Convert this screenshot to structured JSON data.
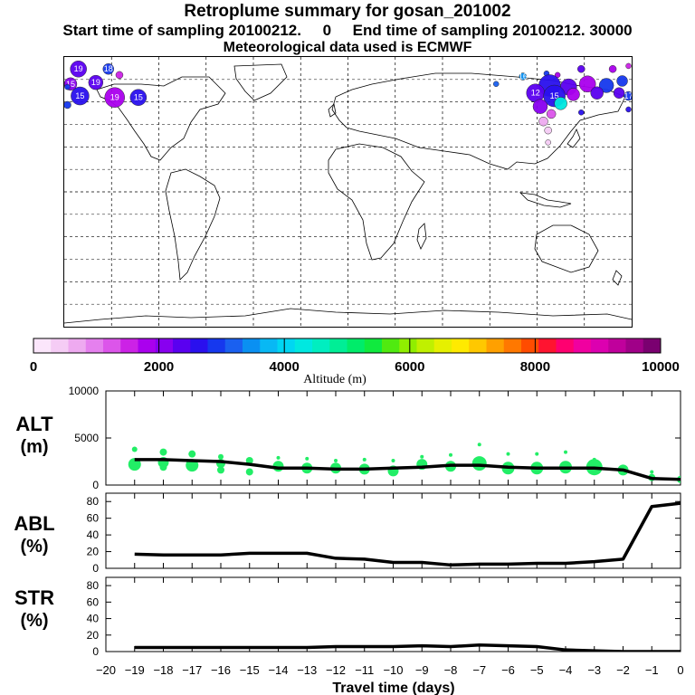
{
  "header": {
    "title": "Retroplume summary for gosan_201002",
    "sampling": "Start time of sampling 20100212.     0     End time of sampling 20100212. 30000",
    "met_data": "Meteorological data used is ECMWF"
  },
  "colorbar": {
    "label": "Altitude (m)",
    "ticks": [
      "0",
      "2000",
      "4000",
      "6000",
      "8000",
      "10000"
    ],
    "range": [
      0,
      10000
    ],
    "colors": [
      "#fbe6fb",
      "#f5ccf5",
      "#eeaaf0",
      "#e580ee",
      "#dc55ea",
      "#cc22e6",
      "#aa00ee",
      "#8800f0",
      "#5a00f0",
      "#2a10ee",
      "#1638ee",
      "#1a60f0",
      "#0a90f2",
      "#08b8f4",
      "#00d6f2",
      "#00e8e0",
      "#00eec0",
      "#00ee96",
      "#00ec6a",
      "#10ea3e",
      "#50ea10",
      "#90ee00",
      "#c0f000",
      "#e6f000",
      "#ffea00",
      "#ffc800",
      "#ffa000",
      "#ff7800",
      "#ff4c00",
      "#ff1430",
      "#ff0070",
      "#f000a0",
      "#dc00b0",
      "#c0009c",
      "#a00088",
      "#7a0070"
    ]
  },
  "map": {
    "markers": [
      {
        "lon": -171,
        "lat": 82,
        "r": 9,
        "color": "#5a00f0",
        "label": "19"
      },
      {
        "lon": -152,
        "lat": 82,
        "r": 6,
        "color": "#1638ee",
        "label": "18"
      },
      {
        "lon": -145,
        "lat": 78,
        "r": 4,
        "color": "#cc22e6",
        "label": ""
      },
      {
        "lon": -176,
        "lat": 72,
        "r": 7,
        "color": "#8800f0",
        "label": "15"
      },
      {
        "lon": -160,
        "lat": 73,
        "r": 8,
        "color": "#5a00f0",
        "label": "19"
      },
      {
        "lon": -170,
        "lat": 64,
        "r": 10,
        "color": "#2a10ee",
        "label": "15"
      },
      {
        "lon": -148,
        "lat": 63,
        "r": 11,
        "color": "#aa00ee",
        "label": "19"
      },
      {
        "lon": -133,
        "lat": 63,
        "r": 9,
        "color": "#2a10ee",
        "label": "15"
      },
      {
        "lon": -178,
        "lat": 58,
        "r": 4,
        "color": "#1638ee",
        "label": ""
      },
      {
        "lon": 148,
        "lat": 82,
        "r": 4,
        "color": "#5a00f0",
        "label": ""
      },
      {
        "lon": 168,
        "lat": 82,
        "r": 4,
        "color": "#aa00ee",
        "label": ""
      },
      {
        "lon": 178,
        "lat": 84,
        "r": 3,
        "color": "#cc22e6",
        "label": ""
      },
      {
        "lon": 111,
        "lat": 77,
        "r": 4,
        "color": "#0a90f2",
        "label": "16"
      },
      {
        "lon": 126,
        "lat": 79,
        "r": 3,
        "color": "#1638ee",
        "label": ""
      },
      {
        "lon": 133,
        "lat": 78,
        "r": 3,
        "color": "#aa00ee",
        "label": ""
      },
      {
        "lon": 94,
        "lat": 72,
        "r": 3,
        "color": "#1a60f0",
        "label": ""
      },
      {
        "lon": 128,
        "lat": 71,
        "r": 12,
        "color": "#2a10ee",
        "label": ""
      },
      {
        "lon": 140,
        "lat": 70,
        "r": 9,
        "color": "#5a00f0",
        "label": ""
      },
      {
        "lon": 152,
        "lat": 72,
        "r": 9,
        "color": "#aa00ee",
        "label": ""
      },
      {
        "lon": 164,
        "lat": 71,
        "r": 8,
        "color": "#1638ee",
        "label": ""
      },
      {
        "lon": 174,
        "lat": 74,
        "r": 6,
        "color": "#1638ee",
        "label": ""
      },
      {
        "lon": 119,
        "lat": 66,
        "r": 10,
        "color": "#5a00f0",
        "label": "12"
      },
      {
        "lon": 131,
        "lat": 64,
        "r": 12,
        "color": "#2a10ee",
        "label": "15"
      },
      {
        "lon": 143,
        "lat": 65,
        "r": 7,
        "color": "#aa00ee",
        "label": ""
      },
      {
        "lon": 158,
        "lat": 66,
        "r": 7,
        "color": "#5a00f0",
        "label": ""
      },
      {
        "lon": 172,
        "lat": 66,
        "r": 6,
        "color": "#5a00f0",
        "label": ""
      },
      {
        "lon": 178,
        "lat": 64,
        "r": 5,
        "color": "#1638ee",
        "label": "17"
      },
      {
        "lon": 122,
        "lat": 57,
        "r": 8,
        "color": "#8800f0",
        "label": ""
      },
      {
        "lon": 135,
        "lat": 59,
        "r": 7,
        "color": "#00e8e0",
        "label": ""
      },
      {
        "lon": 129,
        "lat": 52,
        "r": 5,
        "color": "#dc55ea",
        "label": ""
      },
      {
        "lon": 124,
        "lat": 47,
        "r": 5,
        "color": "#eeaaf0",
        "label": ""
      },
      {
        "lon": 127,
        "lat": 41,
        "r": 4,
        "color": "#f5ccf5",
        "label": ""
      },
      {
        "lon": 127,
        "lat": 33,
        "r": 3,
        "color": "#f5ccf5",
        "label": ""
      },
      {
        "lon": 148,
        "lat": 53,
        "r": 3,
        "color": "#2a10ee",
        "label": ""
      },
      {
        "lon": 178,
        "lat": 55,
        "r": 3,
        "color": "#2a10ee",
        "label": ""
      },
      {
        "lon": -178,
        "lat": 70,
        "r": 3,
        "color": "#1638ee",
        "label": ""
      }
    ]
  },
  "panels": {
    "xlabel": "Travel time (days)",
    "xticks": [
      "-20",
      "-19",
      "-18",
      "-17",
      "-16",
      "-15",
      "-14",
      "-13",
      "-12",
      "-11",
      "-10",
      "-9",
      "-8",
      "-7",
      "-6",
      "-5",
      "-4",
      "-3",
      "-2",
      "-1",
      "0"
    ],
    "alt": {
      "label1": "ALT",
      "label2": "(m)",
      "yticks": [
        "0",
        "5000",
        "10000"
      ],
      "ymax": 10000
    },
    "abl": {
      "label1": "ABL",
      "label2": "(%)",
      "yticks": [
        "0",
        "20",
        "40",
        "60",
        "80"
      ],
      "ymax": 90
    },
    "str": {
      "label1": "STR",
      "label2": "(%)",
      "yticks": [
        "0",
        "20",
        "40",
        "60",
        "80"
      ],
      "ymax": 90
    }
  },
  "chart_data": [
    {
      "type": "line",
      "title": "ALT (m)",
      "xlabel": "Travel time (days)",
      "ylabel": "ALT (m)",
      "xlim": [
        -20,
        0
      ],
      "ylim": [
        0,
        10000
      ],
      "x": [
        -19,
        -18,
        -17,
        -16,
        -15,
        -14,
        -13,
        -12,
        -11,
        -10,
        -9,
        -8,
        -7,
        -6,
        -5,
        -4,
        -3,
        -2,
        -1,
        0
      ],
      "series": [
        {
          "name": "mean altitude",
          "values": [
            2700,
            2700,
            2600,
            2500,
            2200,
            1800,
            1800,
            1700,
            1700,
            1800,
            1900,
            2100,
            2100,
            1900,
            1800,
            1800,
            1800,
            1600,
            700,
            600
          ]
        },
        {
          "name": "cluster altitudes",
          "points": [
            {
              "x": -19,
              "y": 2200,
              "s": 7
            },
            {
              "x": -19,
              "y": 3800,
              "s": 3
            },
            {
              "x": -18,
              "y": 2400,
              "s": 6
            },
            {
              "x": -18,
              "y": 3500,
              "s": 4
            },
            {
              "x": -18,
              "y": 1900,
              "s": 4
            },
            {
              "x": -17,
              "y": 2100,
              "s": 7
            },
            {
              "x": -17,
              "y": 3300,
              "s": 4
            },
            {
              "x": -16,
              "y": 2300,
              "s": 5
            },
            {
              "x": -16,
              "y": 3000,
              "s": 3
            },
            {
              "x": -16,
              "y": 1600,
              "s": 4
            },
            {
              "x": -15,
              "y": 2600,
              "s": 4
            },
            {
              "x": -15,
              "y": 1400,
              "s": 4
            },
            {
              "x": -14,
              "y": 2000,
              "s": 6
            },
            {
              "x": -14,
              "y": 2900,
              "s": 2
            },
            {
              "x": -13,
              "y": 1800,
              "s": 6
            },
            {
              "x": -13,
              "y": 2800,
              "s": 2
            },
            {
              "x": -12,
              "y": 1800,
              "s": 6
            },
            {
              "x": -12,
              "y": 2600,
              "s": 2
            },
            {
              "x": -11,
              "y": 1700,
              "s": 6
            },
            {
              "x": -11,
              "y": 2700,
              "s": 2
            },
            {
              "x": -10,
              "y": 1500,
              "s": 6
            },
            {
              "x": -10,
              "y": 2600,
              "s": 2
            },
            {
              "x": -9,
              "y": 2200,
              "s": 6
            },
            {
              "x": -9,
              "y": 3000,
              "s": 2
            },
            {
              "x": -8,
              "y": 2000,
              "s": 6
            },
            {
              "x": -8,
              "y": 3200,
              "s": 2
            },
            {
              "x": -7,
              "y": 2300,
              "s": 8
            },
            {
              "x": -7,
              "y": 4300,
              "s": 2
            },
            {
              "x": -6,
              "y": 1800,
              "s": 7
            },
            {
              "x": -6,
              "y": 3300,
              "s": 2
            },
            {
              "x": -5,
              "y": 1800,
              "s": 7
            },
            {
              "x": -5,
              "y": 3300,
              "s": 2
            },
            {
              "x": -4,
              "y": 1900,
              "s": 7
            },
            {
              "x": -4,
              "y": 3500,
              "s": 2
            },
            {
              "x": -3,
              "y": 1900,
              "s": 9
            },
            {
              "x": -3,
              "y": 2700,
              "s": 2
            },
            {
              "x": -2,
              "y": 1600,
              "s": 6
            },
            {
              "x": -1,
              "y": 800,
              "s": 4
            },
            {
              "x": -1,
              "y": 1400,
              "s": 2
            },
            {
              "x": 0,
              "y": 600,
              "s": 4
            }
          ]
        }
      ]
    },
    {
      "type": "line",
      "title": "ABL (%)",
      "xlabel": "Travel time (days)",
      "ylabel": "ABL (%)",
      "xlim": [
        -20,
        0
      ],
      "ylim": [
        0,
        90
      ],
      "x": [
        -19,
        -18,
        -17,
        -16,
        -15,
        -14,
        -13,
        -12,
        -11,
        -10,
        -9,
        -8,
        -7,
        -6,
        -5,
        -4,
        -3,
        -2,
        -1,
        0
      ],
      "series": [
        {
          "name": "ABL",
          "values": [
            17,
            16,
            16,
            16,
            18,
            18,
            18,
            12,
            11,
            7,
            7,
            4,
            5,
            5,
            6,
            6,
            8,
            11,
            74,
            78
          ]
        }
      ]
    },
    {
      "type": "line",
      "title": "STR (%)",
      "xlabel": "Travel time (days)",
      "ylabel": "STR (%)",
      "xlim": [
        -20,
        0
      ],
      "ylim": [
        0,
        90
      ],
      "x": [
        -19,
        -18,
        -17,
        -16,
        -15,
        -14,
        -13,
        -12,
        -11,
        -10,
        -9,
        -8,
        -7,
        -6,
        -5,
        -4,
        -3,
        -2,
        -1,
        0
      ],
      "series": [
        {
          "name": "STR",
          "values": [
            5,
            5,
            5,
            5,
            5,
            5,
            5,
            6,
            6,
            6,
            7,
            6,
            8,
            7,
            6,
            2,
            1,
            0,
            0,
            0
          ]
        }
      ]
    }
  ]
}
